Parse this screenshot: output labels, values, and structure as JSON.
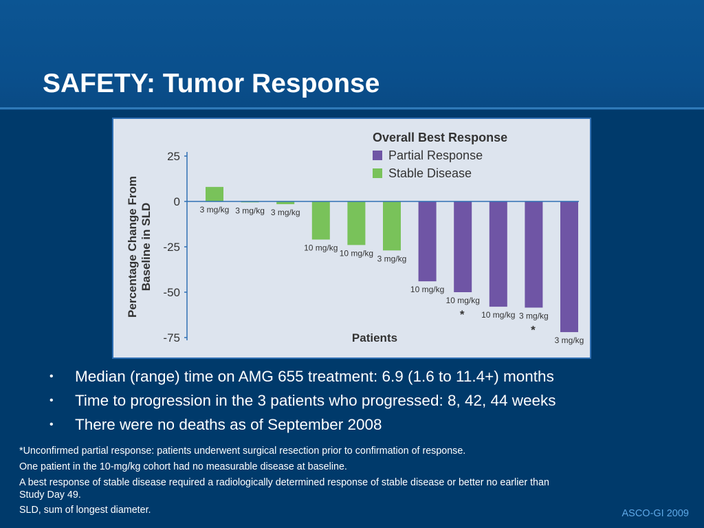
{
  "slide": {
    "title": "SAFETY: Tumor Response",
    "footer": "ASCO-GI 2009"
  },
  "bullets": [
    "Median (range) time on AMG 655 treatment: 6.9 (1.6 to 11.4+) months",
    "Time to progression in the 3 patients who progressed: 8, 42, 44 weeks",
    "There were no deaths as of September 2008"
  ],
  "bullet_symbol": "•",
  "notes": [
    "*Unconfirmed partial response: patients underwent surgical resection prior to confirmation of response.",
    "One patient in the 10-mg/kg cohort had no measurable disease at baseline.",
    "A best response of stable disease required a radiologically determined response of stable disease or better no earlier than Study Day 49.",
    "SLD, sum of longest diameter."
  ],
  "colors": {
    "background": "#003a6b",
    "title_band": "#0a4f8c",
    "chart_panel": "#dde4ee",
    "chart_border": "#2f6fb3",
    "partial_response": "#6f55a5",
    "stable_disease": "#79c25a",
    "footer_text": "#5fa8e6"
  },
  "chart_data": {
    "type": "bar",
    "title": "Overall Best Response",
    "xlabel": "Patients",
    "ylabel": "Percentage Change From Baseline in SLD",
    "ylim": [
      -75,
      25
    ],
    "yticks": [
      "25",
      "0",
      "-25",
      "-50",
      "-75"
    ],
    "grid": false,
    "legend_position": "top-right",
    "series": [
      {
        "name": "Partial Response",
        "color": "#6f55a5"
      },
      {
        "name": "Stable Disease",
        "color": "#79c25a"
      }
    ],
    "bars": [
      {
        "value": 8,
        "label": "3 mg/kg",
        "series": "Stable Disease",
        "asterisk": ""
      },
      {
        "value": -0.5,
        "label": "3 mg/kg",
        "series": "Stable Disease",
        "asterisk": ""
      },
      {
        "value": -1.5,
        "label": "3 mg/kg",
        "series": "Stable Disease",
        "asterisk": ""
      },
      {
        "value": -21,
        "label": "10 mg/kg",
        "series": "Stable Disease",
        "asterisk": ""
      },
      {
        "value": -24,
        "label": "10 mg/kg",
        "series": "Stable Disease",
        "asterisk": ""
      },
      {
        "value": -27,
        "label": "3 mg/kg",
        "series": "Stable Disease",
        "asterisk": ""
      },
      {
        "value": -44,
        "label": "10 mg/kg",
        "series": "Partial Response",
        "asterisk": ""
      },
      {
        "value": -50,
        "label": "10 mg/kg",
        "series": "Partial Response",
        "asterisk": "*"
      },
      {
        "value": -58,
        "label": "10 mg/kg",
        "series": "Partial Response",
        "asterisk": ""
      },
      {
        "value": -58.5,
        "label": "3 mg/kg",
        "series": "Partial Response",
        "asterisk": "*"
      },
      {
        "value": -72,
        "label": "3 mg/kg",
        "series": "Partial Response",
        "asterisk": ""
      }
    ]
  }
}
